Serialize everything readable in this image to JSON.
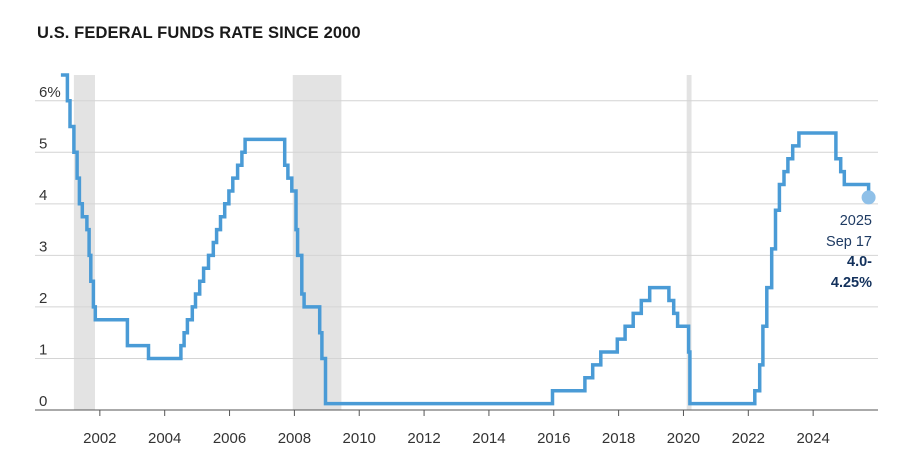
{
  "title": "U.S. FEDERAL FUNDS RATE SINCE 2000",
  "colors": {
    "line": "#4a9bd6",
    "recession": "#e3e3e3",
    "grid": "#d4d4d4",
    "marker": "#8fc0e8",
    "annotation": "#1f3b63"
  },
  "chart_data": {
    "type": "line",
    "title": "U.S. FEDERAL FUNDS RATE SINCE 2000",
    "xlabel": "",
    "ylabel": "",
    "xlim": [
      2000.0,
      2026.0
    ],
    "ylim": [
      0,
      6.5
    ],
    "grid": true,
    "y_ticks": [
      {
        "value": 0,
        "label": "0"
      },
      {
        "value": 1,
        "label": "1"
      },
      {
        "value": 2,
        "label": "2"
      },
      {
        "value": 3,
        "label": "3"
      },
      {
        "value": 4,
        "label": "4"
      },
      {
        "value": 5,
        "label": "5"
      },
      {
        "value": 6,
        "label": "6%"
      }
    ],
    "x_ticks": [
      {
        "value": 2002,
        "label": "2002"
      },
      {
        "value": 2004,
        "label": "2004"
      },
      {
        "value": 2006,
        "label": "2006"
      },
      {
        "value": 2008,
        "label": "2008"
      },
      {
        "value": 2010,
        "label": "2010"
      },
      {
        "value": 2012,
        "label": "2012"
      },
      {
        "value": 2014,
        "label": "2014"
      },
      {
        "value": 2016,
        "label": "2016"
      },
      {
        "value": 2018,
        "label": "2018"
      },
      {
        "value": 2020,
        "label": "2020"
      },
      {
        "value": 2022,
        "label": "2022"
      },
      {
        "value": 2024,
        "label": "2024"
      }
    ],
    "recessions": [
      {
        "start": 2001.2,
        "end": 2001.85
      },
      {
        "start": 2007.95,
        "end": 2009.45
      },
      {
        "start": 2020.1,
        "end": 2020.25
      }
    ],
    "series": [
      {
        "points": [
          [
            2000.8,
            6.5
          ],
          [
            2001.0,
            6.5
          ],
          [
            2001.0,
            6.0
          ],
          [
            2001.08,
            6.0
          ],
          [
            2001.08,
            5.5
          ],
          [
            2001.2,
            5.5
          ],
          [
            2001.2,
            5.0
          ],
          [
            2001.3,
            5.0
          ],
          [
            2001.3,
            4.5
          ],
          [
            2001.37,
            4.5
          ],
          [
            2001.37,
            4.0
          ],
          [
            2001.46,
            4.0
          ],
          [
            2001.46,
            3.75
          ],
          [
            2001.6,
            3.75
          ],
          [
            2001.6,
            3.5
          ],
          [
            2001.67,
            3.5
          ],
          [
            2001.67,
            3.0
          ],
          [
            2001.72,
            3.0
          ],
          [
            2001.72,
            2.5
          ],
          [
            2001.8,
            2.5
          ],
          [
            2001.8,
            2.0
          ],
          [
            2001.86,
            2.0
          ],
          [
            2001.86,
            1.75
          ],
          [
            2002.85,
            1.75
          ],
          [
            2002.85,
            1.25
          ],
          [
            2003.5,
            1.25
          ],
          [
            2003.5,
            1.0
          ],
          [
            2004.5,
            1.0
          ],
          [
            2004.5,
            1.25
          ],
          [
            2004.6,
            1.25
          ],
          [
            2004.6,
            1.5
          ],
          [
            2004.7,
            1.5
          ],
          [
            2004.7,
            1.75
          ],
          [
            2004.85,
            1.75
          ],
          [
            2004.85,
            2.0
          ],
          [
            2004.95,
            2.0
          ],
          [
            2004.95,
            2.25
          ],
          [
            2005.08,
            2.25
          ],
          [
            2005.08,
            2.5
          ],
          [
            2005.2,
            2.5
          ],
          [
            2005.2,
            2.75
          ],
          [
            2005.35,
            2.75
          ],
          [
            2005.35,
            3.0
          ],
          [
            2005.5,
            3.0
          ],
          [
            2005.5,
            3.25
          ],
          [
            2005.6,
            3.25
          ],
          [
            2005.6,
            3.5
          ],
          [
            2005.72,
            3.5
          ],
          [
            2005.72,
            3.75
          ],
          [
            2005.85,
            3.75
          ],
          [
            2005.85,
            4.0
          ],
          [
            2005.98,
            4.0
          ],
          [
            2005.98,
            4.25
          ],
          [
            2006.1,
            4.25
          ],
          [
            2006.1,
            4.5
          ],
          [
            2006.25,
            4.5
          ],
          [
            2006.25,
            4.75
          ],
          [
            2006.38,
            4.75
          ],
          [
            2006.38,
            5.0
          ],
          [
            2006.48,
            5.0
          ],
          [
            2006.48,
            5.25
          ],
          [
            2007.7,
            5.25
          ],
          [
            2007.7,
            4.75
          ],
          [
            2007.8,
            4.75
          ],
          [
            2007.8,
            4.5
          ],
          [
            2007.92,
            4.5
          ],
          [
            2007.92,
            4.25
          ],
          [
            2008.05,
            4.25
          ],
          [
            2008.05,
            3.5
          ],
          [
            2008.1,
            3.5
          ],
          [
            2008.1,
            3.0
          ],
          [
            2008.23,
            3.0
          ],
          [
            2008.23,
            2.25
          ],
          [
            2008.3,
            2.25
          ],
          [
            2008.3,
            2.0
          ],
          [
            2008.78,
            2.0
          ],
          [
            2008.78,
            1.5
          ],
          [
            2008.85,
            1.5
          ],
          [
            2008.85,
            1.0
          ],
          [
            2008.96,
            1.0
          ],
          [
            2008.96,
            0.125
          ],
          [
            2015.96,
            0.125
          ],
          [
            2015.96,
            0.375
          ],
          [
            2016.96,
            0.375
          ],
          [
            2016.96,
            0.625
          ],
          [
            2017.2,
            0.625
          ],
          [
            2017.2,
            0.875
          ],
          [
            2017.45,
            0.875
          ],
          [
            2017.45,
            1.125
          ],
          [
            2017.96,
            1.125
          ],
          [
            2017.96,
            1.375
          ],
          [
            2018.2,
            1.375
          ],
          [
            2018.2,
            1.625
          ],
          [
            2018.45,
            1.625
          ],
          [
            2018.45,
            1.875
          ],
          [
            2018.7,
            1.875
          ],
          [
            2018.7,
            2.125
          ],
          [
            2018.96,
            2.125
          ],
          [
            2018.96,
            2.375
          ],
          [
            2019.55,
            2.375
          ],
          [
            2019.55,
            2.125
          ],
          [
            2019.7,
            2.125
          ],
          [
            2019.7,
            1.875
          ],
          [
            2019.82,
            1.875
          ],
          [
            2019.82,
            1.625
          ],
          [
            2020.16,
            1.625
          ],
          [
            2020.16,
            1.125
          ],
          [
            2020.2,
            1.125
          ],
          [
            2020.2,
            0.125
          ],
          [
            2022.2,
            0.125
          ],
          [
            2022.2,
            0.375
          ],
          [
            2022.35,
            0.375
          ],
          [
            2022.35,
            0.875
          ],
          [
            2022.45,
            0.875
          ],
          [
            2022.45,
            1.625
          ],
          [
            2022.57,
            1.625
          ],
          [
            2022.57,
            2.375
          ],
          [
            2022.72,
            2.375
          ],
          [
            2022.72,
            3.125
          ],
          [
            2022.84,
            3.125
          ],
          [
            2022.84,
            3.875
          ],
          [
            2022.96,
            3.875
          ],
          [
            2022.96,
            4.375
          ],
          [
            2023.1,
            4.375
          ],
          [
            2023.1,
            4.625
          ],
          [
            2023.22,
            4.625
          ],
          [
            2023.22,
            4.875
          ],
          [
            2023.37,
            4.875
          ],
          [
            2023.37,
            5.125
          ],
          [
            2023.56,
            5.125
          ],
          [
            2023.56,
            5.375
          ],
          [
            2024.7,
            5.375
          ],
          [
            2024.7,
            4.875
          ],
          [
            2024.85,
            4.875
          ],
          [
            2024.85,
            4.625
          ],
          [
            2024.96,
            4.625
          ],
          [
            2024.96,
            4.375
          ],
          [
            2025.71,
            4.375
          ],
          [
            2025.71,
            4.125
          ]
        ]
      }
    ],
    "last_point": {
      "x": 2025.71,
      "y": 4.125
    },
    "annotation": {
      "year": "2025",
      "date": "Sep 17",
      "value_line1": "4.0-",
      "value_line2": "4.25%"
    }
  }
}
